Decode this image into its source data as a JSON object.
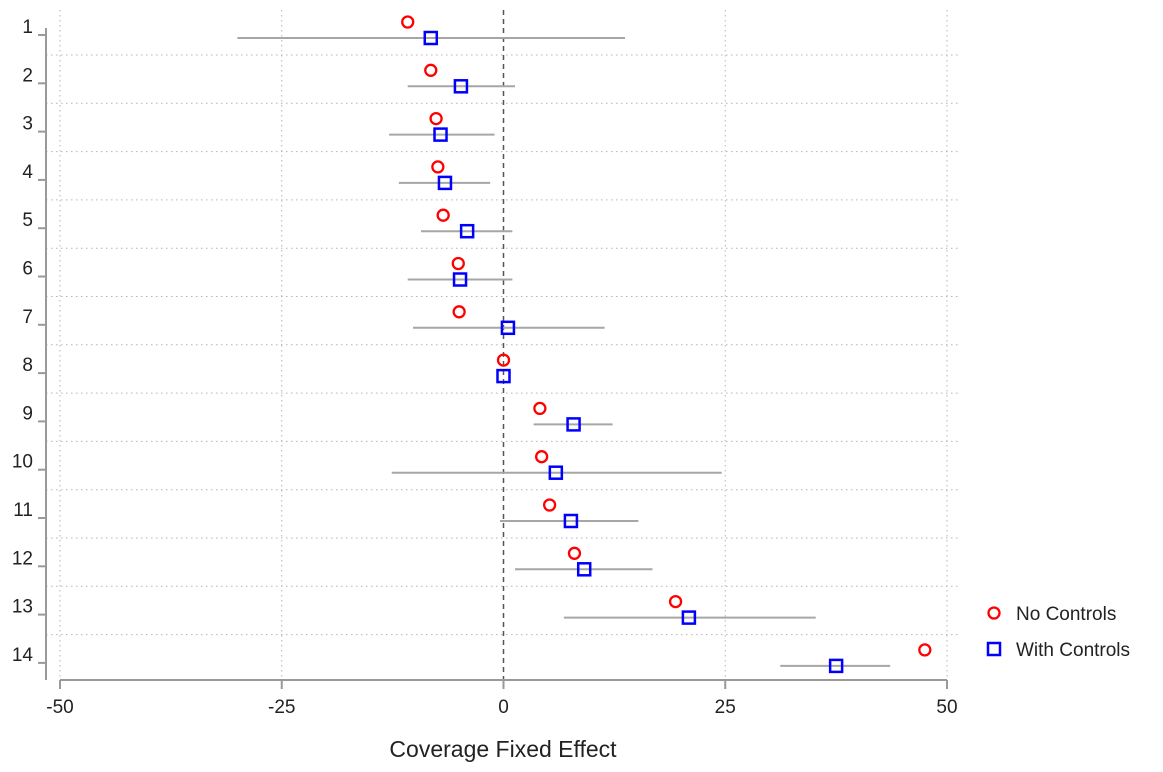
{
  "chart_data": {
    "type": "scatter",
    "title": "",
    "xlabel": "Coverage Fixed Effect",
    "ylabel": "",
    "xlim": [
      -50,
      50
    ],
    "x_ticks": [
      -50,
      -25,
      0,
      25,
      50
    ],
    "categories": [
      "1",
      "2",
      "3",
      "4",
      "5",
      "6",
      "7",
      "8",
      "9",
      "10",
      "11",
      "12",
      "13",
      "14"
    ],
    "reference_line_x": 0,
    "grid": true,
    "legend_position": "right",
    "series": [
      {
        "name": "No Controls",
        "marker": "circle",
        "color": "#ff0000",
        "values": [
          -10.8,
          -8.2,
          -7.6,
          -7.4,
          -6.8,
          -5.1,
          -5.0,
          0,
          4.1,
          4.3,
          5.2,
          8.0,
          19.4,
          47.5
        ]
      },
      {
        "name": "With Controls",
        "marker": "square",
        "color": "#0000ff",
        "values": [
          -8.2,
          -4.8,
          -7.1,
          -6.6,
          -4.1,
          -4.9,
          0.5,
          0,
          7.9,
          5.9,
          7.6,
          9.1,
          20.9,
          37.5
        ],
        "ci_low": [
          -30.0,
          -10.8,
          -12.9,
          -11.8,
          -9.3,
          -10.8,
          -10.2,
          0,
          3.4,
          -12.6,
          -0.4,
          1.3,
          6.8,
          31.2
        ],
        "ci_high": [
          13.7,
          1.3,
          -1.0,
          -1.5,
          1.0,
          1.0,
          11.4,
          0,
          12.3,
          24.6,
          15.2,
          16.8,
          35.2,
          43.6
        ]
      }
    ],
    "colors": {
      "ci": "#a6a6a6",
      "grid": "#b4b4b4",
      "axis": "#999999",
      "text": "#222222"
    }
  }
}
